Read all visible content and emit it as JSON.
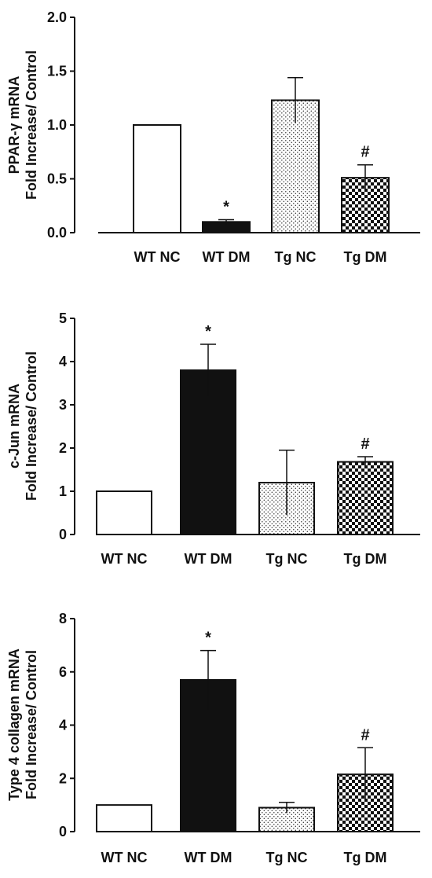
{
  "chart_data": [
    {
      "type": "bar",
      "categories": [
        "WT NC",
        "WT DM",
        "Tg NC",
        "Tg DM"
      ],
      "values": [
        1.0,
        0.1,
        1.23,
        0.51
      ],
      "errors": [
        0.0,
        0.02,
        0.21,
        0.12
      ],
      "annotations": [
        "",
        "*",
        "",
        "#"
      ],
      "ylabel": [
        "PPAR-γ mRNA",
        "Fold Increase/ Control"
      ],
      "ylim": [
        0,
        2.0
      ],
      "yticks": [
        "0.0",
        "0.5",
        "1.0",
        "1.5",
        "2.0"
      ],
      "grid": false
    },
    {
      "type": "bar",
      "categories": [
        "WT NC",
        "WT DM",
        "Tg NC",
        "Tg DM"
      ],
      "values": [
        1.0,
        3.8,
        1.2,
        1.68
      ],
      "errors": [
        0.0,
        0.6,
        0.75,
        0.12
      ],
      "annotations": [
        "",
        "*",
        "",
        "#"
      ],
      "ylabel": [
        "c-Jun mRNA",
        "Fold Increase/ Control"
      ],
      "ylim": [
        0,
        5
      ],
      "yticks": [
        "0",
        "1",
        "2",
        "3",
        "4",
        "5"
      ],
      "grid": false
    },
    {
      "type": "bar",
      "categories": [
        "WT NC",
        "WT DM",
        "Tg NC",
        "Tg DM"
      ],
      "values": [
        1.0,
        5.7,
        0.9,
        2.15
      ],
      "errors": [
        0.0,
        1.1,
        0.2,
        1.0
      ],
      "annotations": [
        "",
        "*",
        "",
        "#"
      ],
      "ylabel": [
        "Type 4 collagen mRNA",
        "Fold Increase/ Control"
      ],
      "ylim": [
        0,
        8
      ],
      "yticks": [
        "0",
        "2",
        "4",
        "6",
        "8"
      ],
      "grid": false
    }
  ],
  "bar_styles": [
    "white",
    "black",
    "dots",
    "checker"
  ],
  "colors": {
    "ink": "#111111",
    "background": "#ffffff"
  }
}
